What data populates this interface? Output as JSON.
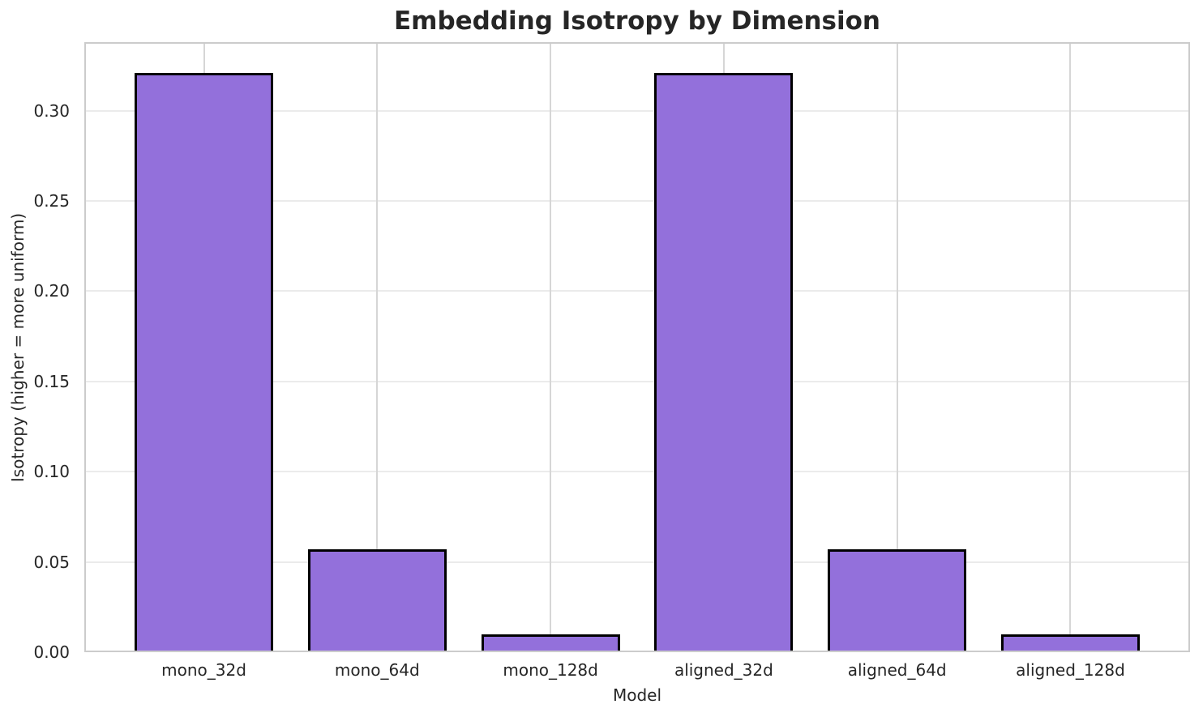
{
  "chart_data": {
    "type": "bar",
    "title": "Embedding Isotropy by Dimension",
    "xlabel": "Model",
    "ylabel": "Isotropy (higher = more uniform)",
    "categories": [
      "mono_32d",
      "mono_64d",
      "mono_128d",
      "aligned_32d",
      "aligned_64d",
      "aligned_128d"
    ],
    "values": [
      0.321,
      0.057,
      0.01,
      0.321,
      0.057,
      0.01
    ],
    "ytick_labels": [
      "0.00",
      "0.05",
      "0.10",
      "0.15",
      "0.20",
      "0.25",
      "0.30"
    ],
    "yticks": [
      0.0,
      0.05,
      0.1,
      0.15,
      0.2,
      0.25,
      0.3
    ],
    "ylim": [
      0,
      0.338
    ],
    "grid": "both",
    "legend": false,
    "bar_color": "#9370DB",
    "bar_edge_color": "#000000",
    "grid_color_horizontal": "#ebebeb",
    "grid_color_vertical": "#d6d6d6",
    "frame_color": "#cccccc",
    "text_color": "#262626",
    "background_color": "#ffffff"
  }
}
